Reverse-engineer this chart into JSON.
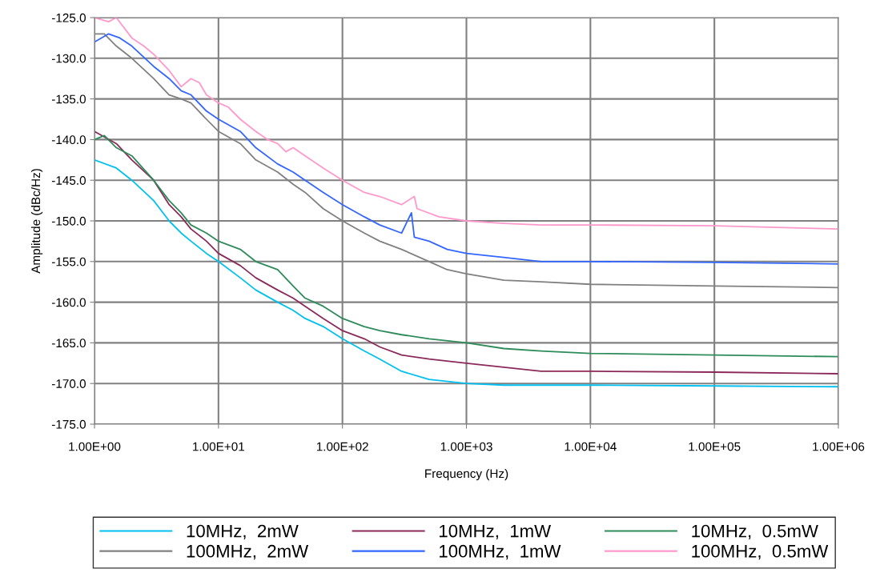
{
  "chart_data": {
    "type": "line",
    "xlabel": "Frequency (Hz)",
    "ylabel": "Amplitude (dBc/Hz)",
    "log": "x",
    "grid": true,
    "legend": "bottom",
    "marker": "none",
    "line_style": "solid",
    "xlim": [
      1,
      1000000
    ],
    "ylim": [
      -175,
      -125
    ],
    "xticks": [
      {
        "value": 1,
        "label": "1.00E+00"
      },
      {
        "value": 10,
        "label": "1.00E+01"
      },
      {
        "value": 100,
        "label": "1.00E+02"
      },
      {
        "value": 1000,
        "label": "1.00E+03"
      },
      {
        "value": 10000,
        "label": "1.00E+04"
      },
      {
        "value": 100000,
        "label": "1.00E+05"
      },
      {
        "value": 1000000,
        "label": "1.00E+06"
      }
    ],
    "yticks": [
      {
        "value": -175,
        "label": "-175.0"
      },
      {
        "value": -170,
        "label": "-170.0"
      },
      {
        "value": -165,
        "label": "-165.0"
      },
      {
        "value": -160,
        "label": "-160.0"
      },
      {
        "value": -155,
        "label": "-155.0"
      },
      {
        "value": -150,
        "label": "-150.0"
      },
      {
        "value": -145,
        "label": "-145.0"
      },
      {
        "value": -140,
        "label": "-140.0"
      },
      {
        "value": -135,
        "label": "-135.0"
      },
      {
        "value": -130,
        "label": "-130.0"
      },
      {
        "value": -125,
        "label": "-125.0"
      }
    ],
    "series": [
      {
        "name": "10MHz,  2mW",
        "color": "#00c0f0",
        "x": [
          1,
          1.5,
          2,
          3,
          4,
          5,
          6,
          8,
          10,
          15,
          20,
          30,
          40,
          50,
          70,
          100,
          150,
          200,
          300,
          500,
          1000,
          2000,
          10000,
          100000,
          1000000
        ],
        "values": [
          -142.5,
          -143.5,
          -145,
          -147.5,
          -150,
          -151.5,
          -152.5,
          -154,
          -155,
          -157,
          -158.5,
          -160,
          -161,
          -162,
          -163,
          -164.5,
          -166,
          -167,
          -168.5,
          -169.5,
          -170,
          -170.2,
          -170.2,
          -170.3,
          -170.4
        ]
      },
      {
        "name": "10MHz,  1mW",
        "color": "#8b2a5a",
        "x": [
          1,
          1.5,
          2,
          3,
          4,
          5,
          6,
          8,
          10,
          15,
          20,
          30,
          40,
          50,
          70,
          100,
          150,
          200,
          300,
          500,
          1000,
          2000,
          4000,
          10000,
          100000,
          1000000
        ],
        "values": [
          -139,
          -140.5,
          -142.5,
          -145,
          -148,
          -149.5,
          -151,
          -152.5,
          -154,
          -155.5,
          -157,
          -158.5,
          -159.5,
          -160.5,
          -162,
          -163.5,
          -164.5,
          -165.5,
          -166.5,
          -167,
          -167.5,
          -168,
          -168.5,
          -168.5,
          -168.6,
          -168.8
        ]
      },
      {
        "name": "10MHz,  0.5mW",
        "color": "#2e8b5a",
        "x": [
          1,
          1.2,
          1.5,
          2,
          3,
          4,
          5,
          6,
          8,
          10,
          15,
          20,
          30,
          40,
          50,
          70,
          100,
          150,
          200,
          300,
          500,
          1000,
          2000,
          4000,
          10000,
          100000,
          1000000
        ],
        "values": [
          -140,
          -139.5,
          -141,
          -142,
          -145,
          -147.5,
          -149,
          -150.5,
          -151.5,
          -152.5,
          -153.5,
          -155,
          -156,
          -158,
          -159.5,
          -160.5,
          -162,
          -163,
          -163.5,
          -164,
          -164.5,
          -165,
          -165.7,
          -166,
          -166.3,
          -166.5,
          -166.7
        ]
      },
      {
        "name": "100MHz,  2mW",
        "color": "#808080",
        "x": [
          1,
          1.2,
          1.5,
          2,
          3,
          4,
          5,
          6,
          8,
          10,
          15,
          20,
          30,
          40,
          50,
          70,
          100,
          150,
          200,
          300,
          500,
          700,
          1000,
          2000,
          4000,
          10000,
          100000,
          1000000
        ],
        "values": [
          -127,
          -127,
          -128.5,
          -130,
          -132.5,
          -134.5,
          -135,
          -135.5,
          -137.5,
          -139,
          -140.5,
          -142.5,
          -144,
          -145.5,
          -146.5,
          -148.5,
          -150,
          -151.5,
          -152.5,
          -153.5,
          -155,
          -156,
          -156.5,
          -157.3,
          -157.5,
          -157.8,
          -158,
          -158.2
        ]
      },
      {
        "name": "100MHz,  1mW",
        "color": "#3366ff",
        "x": [
          1,
          1.3,
          1.6,
          2,
          3,
          4,
          5,
          6,
          8,
          10,
          15,
          20,
          30,
          40,
          50,
          70,
          100,
          150,
          200,
          300,
          360,
          380,
          500,
          700,
          1000,
          2000,
          4000,
          10000,
          100000,
          1000000
        ],
        "values": [
          -128,
          -127,
          -127.5,
          -128.5,
          -131,
          -132.5,
          -134,
          -134.5,
          -136.5,
          -137.5,
          -139,
          -141,
          -143,
          -144,
          -145,
          -146.5,
          -148,
          -149.5,
          -150.5,
          -151.5,
          -149,
          -152,
          -152.5,
          -153.5,
          -154,
          -154.5,
          -155,
          -155,
          -155.1,
          -155.3
        ]
      },
      {
        "name": "100MHz,  0.5mW",
        "color": "#ff99cc",
        "x": [
          1,
          1.3,
          1.5,
          2,
          2.5,
          3,
          4,
          5,
          6,
          7,
          8,
          10,
          12,
          15,
          20,
          25,
          30,
          35,
          40,
          50,
          70,
          100,
          150,
          200,
          300,
          380,
          400,
          600,
          1000,
          2000,
          4000,
          10000,
          100000,
          1000000
        ],
        "values": [
          -125,
          -125.5,
          -125,
          -127.5,
          -128.5,
          -129.5,
          -131.5,
          -133.5,
          -132.5,
          -133,
          -134.5,
          -135.5,
          -136,
          -137.5,
          -139,
          -140,
          -140.5,
          -141.5,
          -141,
          -142,
          -143.5,
          -145,
          -146.5,
          -147,
          -148,
          -147,
          -148.5,
          -149.5,
          -150,
          -150.3,
          -150.5,
          -150.5,
          -150.6,
          -151
        ]
      }
    ]
  }
}
